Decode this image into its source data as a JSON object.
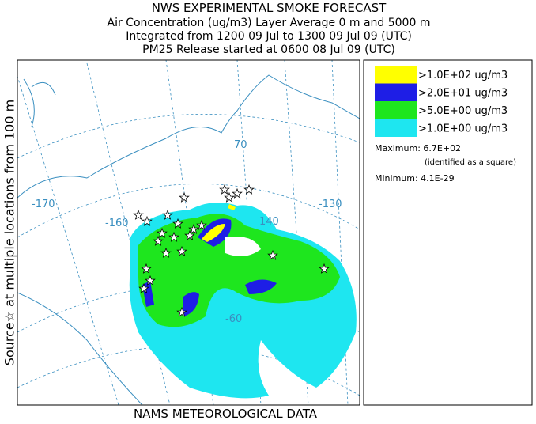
{
  "header": {
    "title": "NWS EXPERIMENTAL SMOKE FORECAST",
    "lines": [
      "Air Concentration (ug/m3) Layer Average    0 m and  5000 m",
      "Integrated from 1200 09 Jul to 1300 09 Jul 09 (UTC)",
      "PM25 Release started at 0600 08 Jul 09 (UTC)"
    ]
  },
  "side_label": "Source☆ at multiple locations  from   100 m",
  "footer": "NAMS METEOROLOGICAL DATA",
  "map": {
    "graticule_labels": [
      "-170",
      "-160",
      "70",
      "140",
      "-130",
      "-60"
    ]
  },
  "legend": {
    "entries": [
      {
        "label": ">1.0E+02 ug/m3",
        "color": "#ffff00"
      },
      {
        "label": ">2.0E+01 ug/m3",
        "color": "#1e1ee6"
      },
      {
        "label": ">5.0E+00 ug/m3",
        "color": "#1ee61e"
      },
      {
        "label": ">1.0E+00 ug/m3",
        "color": "#1ee6f0"
      }
    ],
    "maximum": "Maximum: 6.7E+02",
    "maximum_note": "(identified as a square)",
    "minimum": "Minimum: 4.1E-29"
  }
}
